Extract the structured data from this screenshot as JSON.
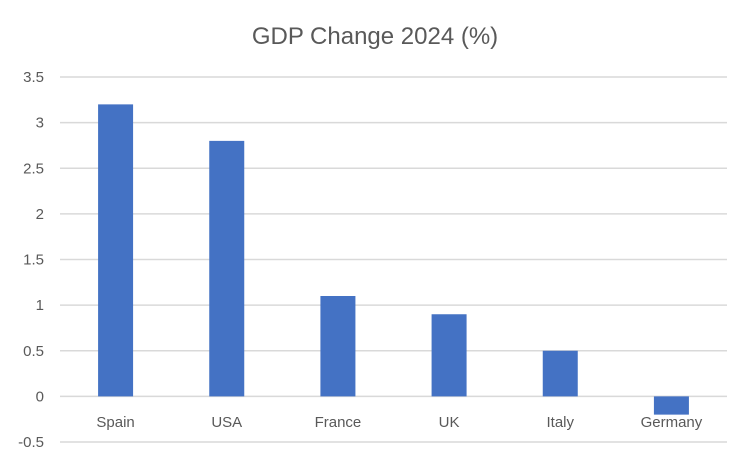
{
  "chart_data": {
    "type": "bar",
    "title": "GDP Change 2024 (%)",
    "xlabel": "",
    "ylabel": "",
    "categories": [
      "Spain",
      "USA",
      "France",
      "UK",
      "Italy",
      "Germany"
    ],
    "values": [
      3.2,
      2.8,
      1.1,
      0.9,
      0.5,
      -0.2
    ],
    "ylim": [
      -0.5,
      3.5
    ],
    "yticks": [
      -0.5,
      0,
      0.5,
      1,
      1.5,
      2,
      2.5,
      3,
      3.5
    ],
    "ytick_labels": [
      "-0.5",
      "0",
      "0.5",
      "1",
      "1.5",
      "2",
      "2.5",
      "3",
      "3.5"
    ],
    "grid": true,
    "legend": "none",
    "bar_color": "#4472c4"
  }
}
